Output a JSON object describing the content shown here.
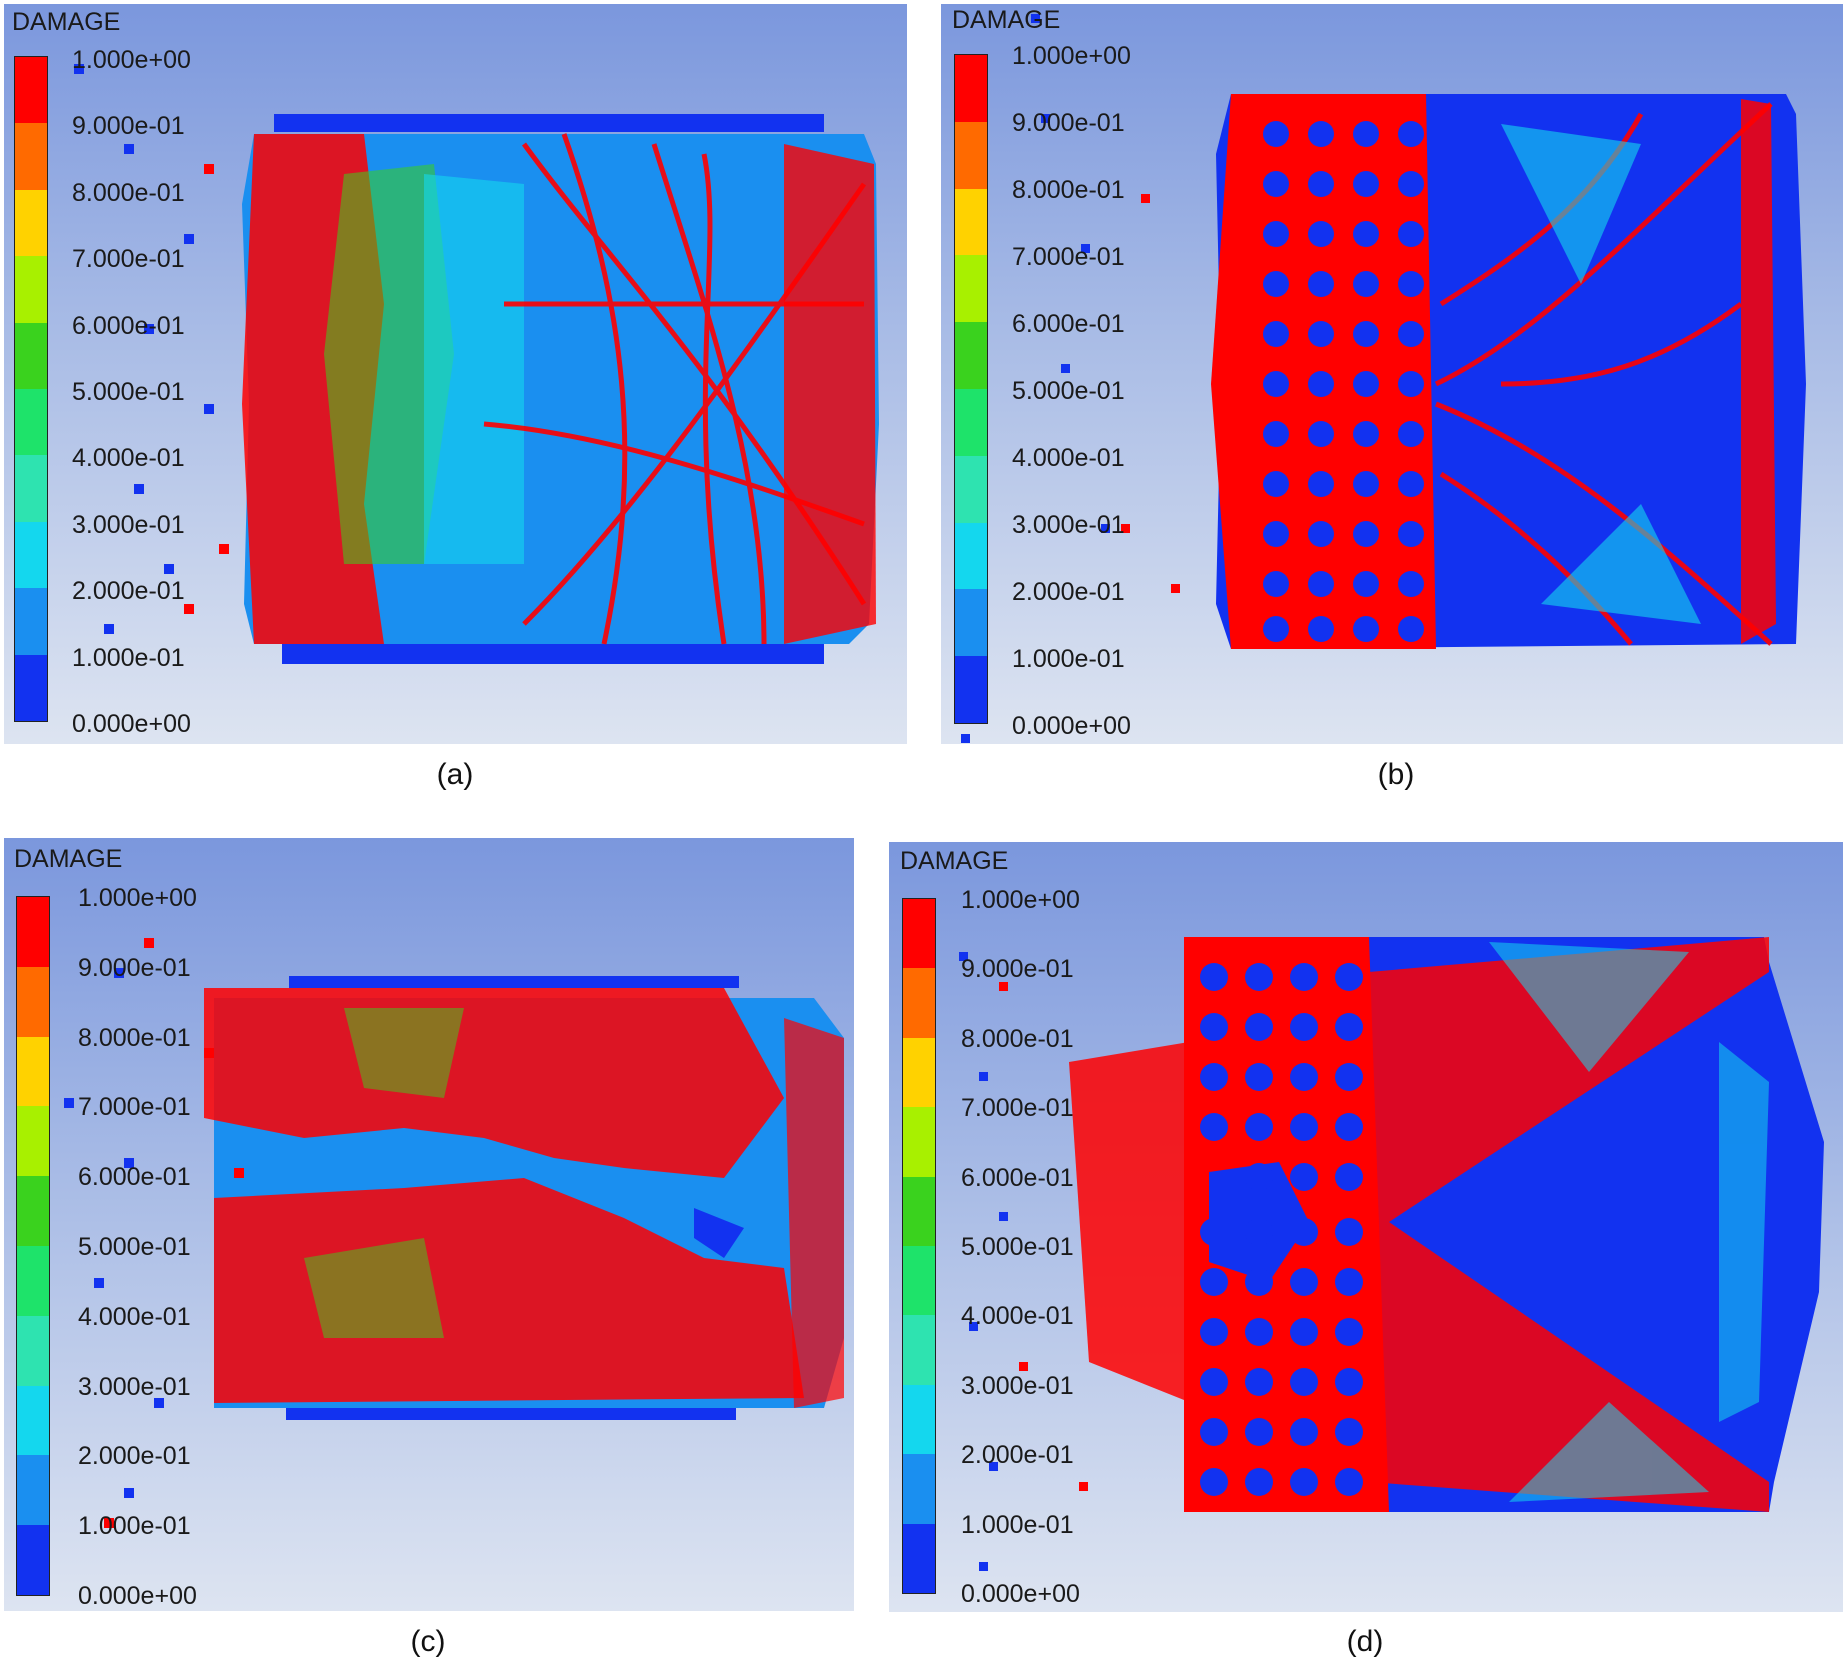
{
  "figure": {
    "panels": [
      {
        "id": "a",
        "caption": "(a)",
        "legend_title": "DAMAGE",
        "has_holes": false,
        "legend_labels": [
          "1.000e+00",
          "9.000e-01",
          "8.000e-01",
          "7.000e-01",
          "6.000e-01",
          "5.000e-01",
          "4.000e-01",
          "3.000e-01",
          "2.000e-01",
          "1.000e-01",
          "0.000e+00"
        ]
      },
      {
        "id": "b",
        "caption": "(b)",
        "legend_title": "DAMAGE",
        "has_holes": true,
        "legend_labels": [
          "1.000e+00",
          "9.000e-01",
          "8.000e-01",
          "7.000e-01",
          "6.000e-01",
          "5.000e-01",
          "4.000e-01",
          "3.000e-01",
          "2.000e-01",
          "1.000e-01",
          "0.000e+00"
        ]
      },
      {
        "id": "c",
        "caption": "(c)",
        "legend_title": "DAMAGE",
        "has_holes": false,
        "legend_labels": [
          "1.000e+00",
          "9.000e-01",
          "8.000e-01",
          "7.000e-01",
          "6.000e-01",
          "5.000e-01",
          "4.000e-01",
          "3.000e-01",
          "2.000e-01",
          "1.000e-01",
          "0.000e+00"
        ]
      },
      {
        "id": "d",
        "caption": "(d)",
        "legend_title": "DAMAGE",
        "has_holes": true,
        "legend_labels": [
          "1.000e+00",
          "9.000e-01",
          "8.000e-01",
          "7.000e-01",
          "6.000e-01",
          "5.000e-01",
          "4.000e-01",
          "3.000e-01",
          "2.000e-01",
          "1.000e-01",
          "0.000e+00"
        ]
      }
    ],
    "colormap": [
      "#ff0000",
      "#ff6a00",
      "#ffd200",
      "#a8f000",
      "#3ad21e",
      "#1ee36a",
      "#2ee3b0",
      "#14d7ee",
      "#1a8ff0",
      "#1232f0"
    ]
  }
}
